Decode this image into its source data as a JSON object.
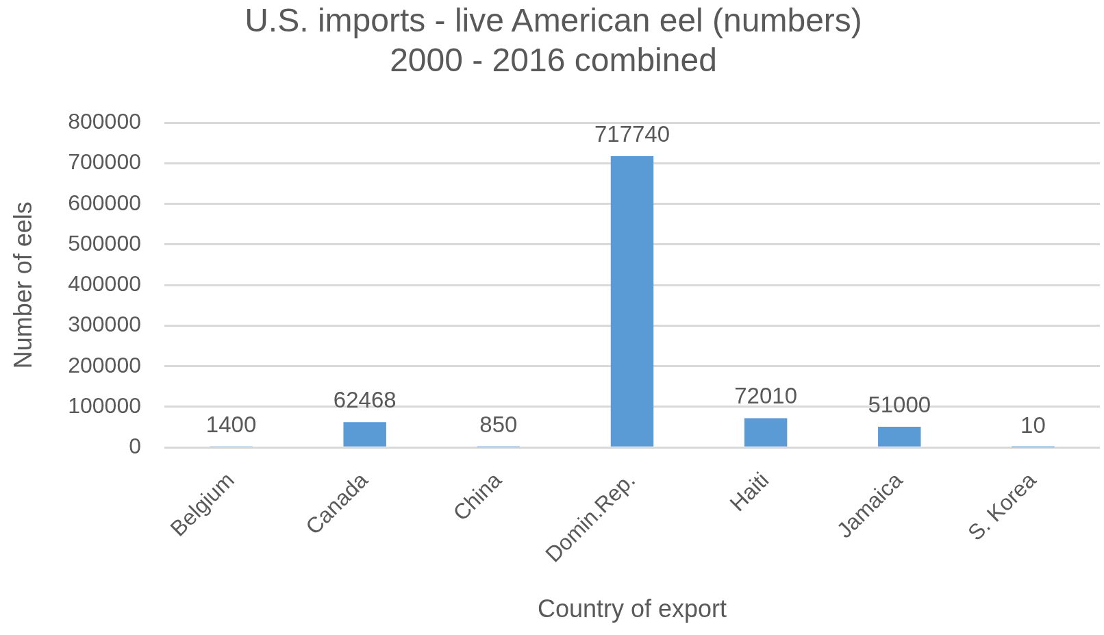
{
  "chart_data": {
    "type": "bar",
    "title": "U.S. imports - live American eel (numbers)\n2000 - 2016 combined",
    "xlabel": "Country of export",
    "ylabel": "Number of eels",
    "categories": [
      "Belgium",
      "Canada",
      "China",
      "Domin.Rep.",
      "Haiti",
      "Jamaica",
      "S. Korea"
    ],
    "values": [
      1400,
      62468,
      850,
      717740,
      72010,
      51000,
      10
    ],
    "color": "#5b9bd5",
    "ylim": [
      0,
      800000
    ],
    "yticks": [
      0,
      100000,
      200000,
      300000,
      400000,
      500000,
      600000,
      700000,
      800000
    ],
    "grid": "y",
    "data_labels": true,
    "legend": false
  }
}
